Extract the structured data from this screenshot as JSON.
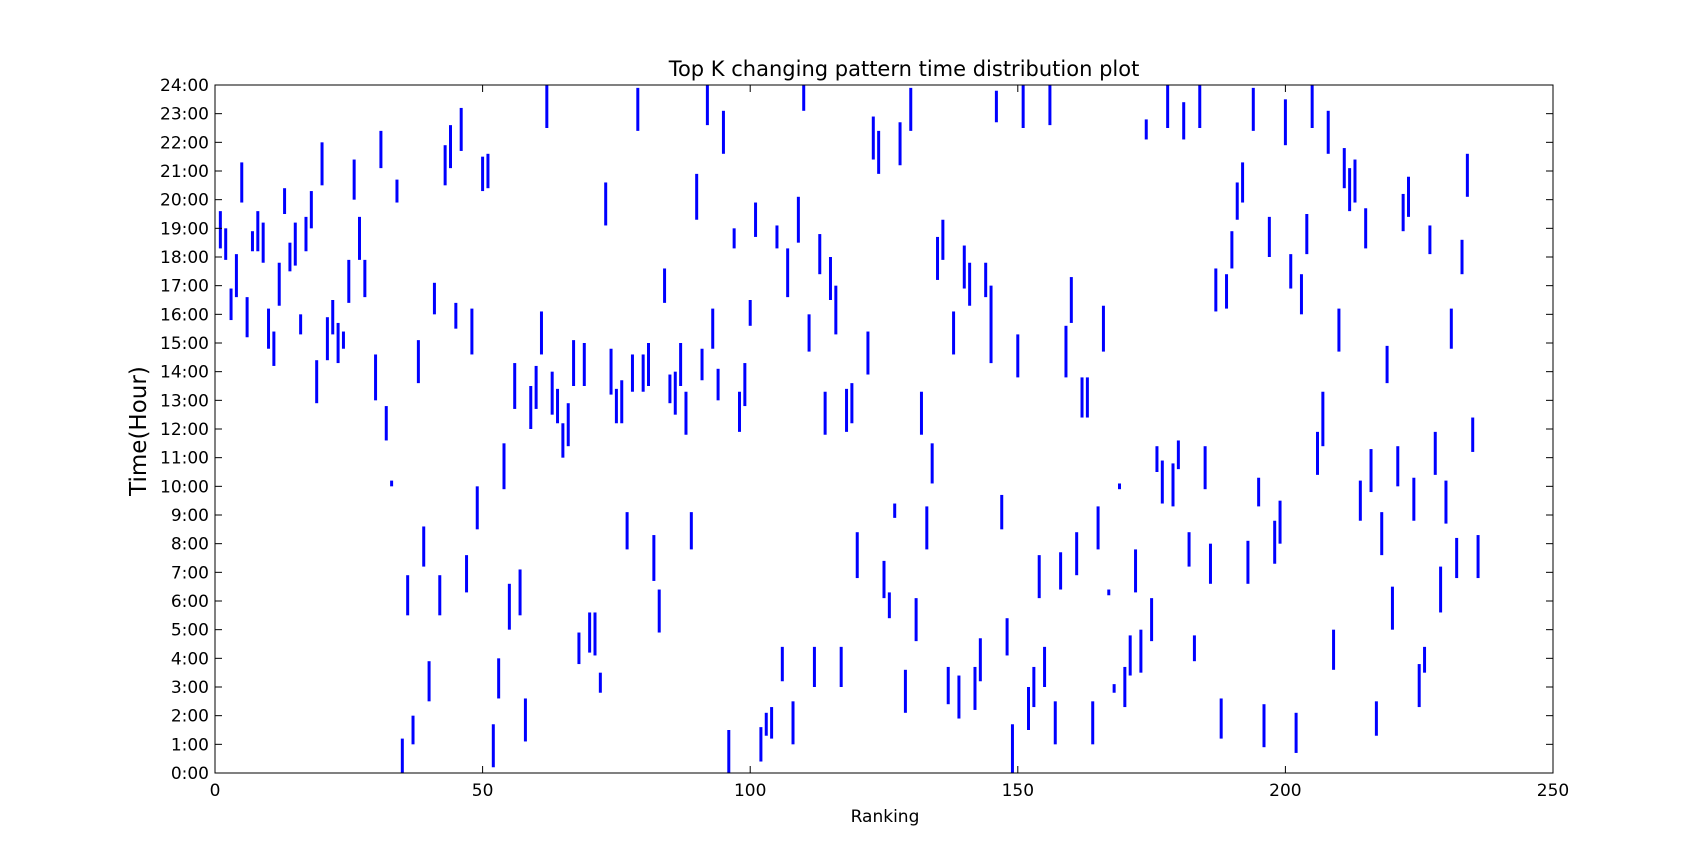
{
  "chart_data": {
    "type": "segment",
    "title": "Top K changing pattern time distribution plot",
    "xlabel": "Ranking",
    "ylabel": "Time(Hour)",
    "xlim": [
      0,
      250
    ],
    "ylim": [
      0,
      24
    ],
    "x_ticks": [
      0,
      50,
      100,
      150,
      200,
      250
    ],
    "y_ticks": [
      "0:00",
      "1:00",
      "2:00",
      "3:00",
      "4:00",
      "5:00",
      "6:00",
      "7:00",
      "8:00",
      "9:00",
      "10:00",
      "11:00",
      "12:00",
      "13:00",
      "14:00",
      "15:00",
      "16:00",
      "17:00",
      "18:00",
      "19:00",
      "20:00",
      "21:00",
      "22:00",
      "23:00",
      "24:00"
    ],
    "grid": false,
    "series_color": "#0000ff",
    "segments": [
      [
        1,
        18.3,
        19.6
      ],
      [
        2,
        17.9,
        19
      ],
      [
        3,
        15.8,
        16.9
      ],
      [
        4,
        16.6,
        18.1
      ],
      [
        5,
        19.9,
        21.3
      ],
      [
        6,
        15.2,
        16.6
      ],
      [
        7,
        18.2,
        18.9
      ],
      [
        8,
        18.2,
        19.6
      ],
      [
        9,
        17.8,
        19.2
      ],
      [
        10,
        14.8,
        16.2
      ],
      [
        11,
        14.2,
        15.4
      ],
      [
        12,
        16.3,
        17.8
      ],
      [
        13,
        19.5,
        20.4
      ],
      [
        14,
        17.5,
        18.5
      ],
      [
        15,
        17.7,
        19.2
      ],
      [
        16,
        15.3,
        16
      ],
      [
        17,
        18.2,
        19.4
      ],
      [
        18,
        19,
        20.3
      ],
      [
        19,
        12.9,
        14.4
      ],
      [
        20,
        20.5,
        22
      ],
      [
        21,
        14.4,
        15.9
      ],
      [
        22,
        15.3,
        16.5
      ],
      [
        23,
        14.3,
        15.7
      ],
      [
        24,
        14.8,
        15.4
      ],
      [
        25,
        16.4,
        17.9
      ],
      [
        26,
        20,
        21.4
      ],
      [
        27,
        17.9,
        19.4
      ],
      [
        28,
        16.6,
        17.9
      ],
      [
        30,
        13,
        14.6
      ],
      [
        31,
        21.1,
        22.4
      ],
      [
        32,
        11.6,
        12.8
      ],
      [
        33,
        10,
        10.2
      ],
      [
        34,
        19.9,
        20.7
      ],
      [
        35,
        0,
        1.2
      ],
      [
        36,
        5.5,
        6.9
      ],
      [
        37,
        1,
        2
      ],
      [
        38,
        13.6,
        15.1
      ],
      [
        39,
        7.2,
        8.6
      ],
      [
        40,
        2.5,
        3.9
      ],
      [
        41,
        16,
        17.1
      ],
      [
        42,
        5.5,
        6.9
      ],
      [
        43,
        20.5,
        21.9
      ],
      [
        44,
        21.1,
        22.6
      ],
      [
        45,
        15.5,
        16.4
      ],
      [
        46,
        21.7,
        23.2
      ],
      [
        47,
        6.3,
        7.6
      ],
      [
        48,
        14.6,
        16.2
      ],
      [
        49,
        8.5,
        10
      ],
      [
        50,
        20.3,
        21.5
      ],
      [
        51,
        20.4,
        21.6
      ],
      [
        52,
        0.2,
        1.7
      ],
      [
        53,
        2.6,
        4
      ],
      [
        54,
        9.9,
        11.5
      ],
      [
        55,
        5,
        6.6
      ],
      [
        56,
        12.7,
        14.3
      ],
      [
        57,
        5.5,
        7.1
      ],
      [
        58,
        1.1,
        2.6
      ],
      [
        59,
        12,
        13.5
      ],
      [
        60,
        12.7,
        14.2
      ],
      [
        61,
        14.6,
        16.1
      ],
      [
        62,
        22.5,
        24
      ],
      [
        63,
        12.5,
        14
      ],
      [
        64,
        12.2,
        13.4
      ],
      [
        65,
        11,
        12.2
      ],
      [
        66,
        11.4,
        12.9
      ],
      [
        67,
        13.5,
        15.1
      ],
      [
        68,
        3.8,
        4.9
      ],
      [
        69,
        13.5,
        15
      ],
      [
        70,
        4.2,
        5.6
      ],
      [
        71,
        4.1,
        5.6
      ],
      [
        72,
        2.8,
        3.5
      ],
      [
        73,
        19.1,
        20.6
      ],
      [
        74,
        13.2,
        14.8
      ],
      [
        75,
        12.2,
        13.4
      ],
      [
        76,
        12.2,
        13.7
      ],
      [
        77,
        7.8,
        9.1
      ],
      [
        78,
        13.3,
        14.6
      ],
      [
        79,
        22.4,
        23.9
      ],
      [
        80,
        13.3,
        14.6
      ],
      [
        81,
        13.5,
        15
      ],
      [
        82,
        6.7,
        8.3
      ],
      [
        83,
        4.9,
        6.4
      ],
      [
        84,
        16.4,
        17.6
      ],
      [
        85,
        12.9,
        13.9
      ],
      [
        86,
        12.5,
        14
      ],
      [
        87,
        13.5,
        15
      ],
      [
        88,
        11.8,
        13.3
      ],
      [
        89,
        7.8,
        9.1
      ],
      [
        90,
        19.3,
        20.9
      ],
      [
        91,
        13.7,
        14.8
      ],
      [
        92,
        22.6,
        24
      ],
      [
        93,
        14.8,
        16.2
      ],
      [
        94,
        13,
        14.1
      ],
      [
        95,
        21.6,
        23.1
      ],
      [
        96,
        0,
        1.5
      ],
      [
        97,
        18.3,
        19
      ],
      [
        98,
        11.9,
        13.3
      ],
      [
        99,
        12.8,
        14.3
      ],
      [
        100,
        15.6,
        16.5
      ],
      [
        101,
        18.7,
        19.9
      ],
      [
        102,
        0.4,
        1.6
      ],
      [
        103,
        1.3,
        2.1
      ],
      [
        104,
        1.2,
        2.3
      ],
      [
        105,
        18.3,
        19.1
      ],
      [
        106,
        3.2,
        4.4
      ],
      [
        107,
        16.6,
        18.3
      ],
      [
        108,
        1,
        2.5
      ],
      [
        109,
        18.5,
        20.1
      ],
      [
        110,
        23.1,
        24
      ],
      [
        111,
        14.7,
        16
      ],
      [
        112,
        3,
        4.4
      ],
      [
        113,
        17.4,
        18.8
      ],
      [
        114,
        11.8,
        13.3
      ],
      [
        115,
        16.5,
        18
      ],
      [
        116,
        15.3,
        17
      ],
      [
        117,
        3,
        4.4
      ],
      [
        118,
        11.9,
        13.4
      ],
      [
        119,
        12.2,
        13.6
      ],
      [
        120,
        6.8,
        8.4
      ],
      [
        122,
        13.9,
        15.4
      ],
      [
        123,
        21.4,
        22.9
      ],
      [
        124,
        20.9,
        22.4
      ],
      [
        125,
        6.1,
        7.4
      ],
      [
        126,
        5.4,
        6.3
      ],
      [
        127,
        8.9,
        9.4
      ],
      [
        128,
        21.2,
        22.7
      ],
      [
        129,
        2.1,
        3.6
      ],
      [
        130,
        22.4,
        23.9
      ],
      [
        131,
        4.6,
        6.1
      ],
      [
        132,
        11.8,
        13.3
      ],
      [
        133,
        7.8,
        9.3
      ],
      [
        134,
        10.1,
        11.5
      ],
      [
        135,
        17.2,
        18.7
      ],
      [
        136,
        17.9,
        19.3
      ],
      [
        137,
        2.4,
        3.7
      ],
      [
        138,
        14.6,
        16.1
      ],
      [
        139,
        1.9,
        3.4
      ],
      [
        140,
        16.9,
        18.4
      ],
      [
        141,
        16.3,
        17.8
      ],
      [
        142,
        2.2,
        3.7
      ],
      [
        143,
        3.2,
        4.7
      ],
      [
        144,
        16.6,
        17.8
      ],
      [
        145,
        14.3,
        17
      ],
      [
        146,
        22.7,
        23.8
      ],
      [
        147,
        8.5,
        9.7
      ],
      [
        148,
        4.1,
        5.4
      ],
      [
        149,
        0,
        1.7
      ],
      [
        150,
        13.8,
        15.3
      ],
      [
        151,
        22.5,
        24
      ],
      [
        152,
        1.5,
        3
      ],
      [
        153,
        2.3,
        3.7
      ],
      [
        154,
        6.1,
        7.6
      ],
      [
        155,
        3,
        4.4
      ],
      [
        156,
        22.6,
        24
      ],
      [
        157,
        1,
        2.5
      ],
      [
        158,
        6.4,
        7.7
      ],
      [
        159,
        13.8,
        15.6
      ],
      [
        160,
        15.7,
        17.3
      ],
      [
        161,
        6.9,
        8.4
      ],
      [
        162,
        12.4,
        13.8
      ],
      [
        163,
        12.4,
        13.8
      ],
      [
        164,
        1,
        2.5
      ],
      [
        165,
        7.8,
        9.3
      ],
      [
        166,
        14.7,
        16.3
      ],
      [
        167,
        6.2,
        6.4
      ],
      [
        168,
        2.8,
        3.1
      ],
      [
        169,
        9.9,
        10.1
      ],
      [
        170,
        2.3,
        3.7
      ],
      [
        171,
        3.4,
        4.8
      ],
      [
        172,
        6.3,
        7.8
      ],
      [
        173,
        3.5,
        5
      ],
      [
        174,
        22.1,
        22.8
      ],
      [
        175,
        4.6,
        6.1
      ],
      [
        176,
        10.5,
        11.4
      ],
      [
        177,
        9.4,
        10.9
      ],
      [
        178,
        22.5,
        24
      ],
      [
        179,
        9.3,
        10.8
      ],
      [
        180,
        10.6,
        11.6
      ],
      [
        181,
        22.1,
        23.4
      ],
      [
        182,
        7.2,
        8.4
      ],
      [
        183,
        3.9,
        4.8
      ],
      [
        184,
        22.5,
        24
      ],
      [
        185,
        9.9,
        11.4
      ],
      [
        186,
        6.6,
        8
      ],
      [
        187,
        16.1,
        17.6
      ],
      [
        188,
        1.2,
        2.6
      ],
      [
        189,
        16.2,
        17.4
      ],
      [
        190,
        17.6,
        18.9
      ],
      [
        191,
        19.3,
        20.6
      ],
      [
        192,
        19.9,
        21.3
      ],
      [
        193,
        6.6,
        8.1
      ],
      [
        194,
        22.4,
        23.9
      ],
      [
        195,
        9.3,
        10.3
      ],
      [
        196,
        0.9,
        2.4
      ],
      [
        197,
        18,
        19.4
      ],
      [
        198,
        7.3,
        8.8
      ],
      [
        199,
        8,
        9.5
      ],
      [
        200,
        21.9,
        23.5
      ],
      [
        201,
        16.9,
        18.1
      ],
      [
        202,
        0.7,
        2.1
      ],
      [
        203,
        16,
        17.4
      ],
      [
        204,
        18.1,
        19.5
      ],
      [
        205,
        22.5,
        24
      ],
      [
        206,
        10.4,
        11.9
      ],
      [
        207,
        11.4,
        13.3
      ],
      [
        208,
        21.6,
        23.1
      ],
      [
        209,
        3.6,
        5
      ],
      [
        210,
        14.7,
        16.2
      ],
      [
        211,
        20.4,
        21.8
      ],
      [
        212,
        19.6,
        21.1
      ],
      [
        213,
        19.9,
        21.4
      ],
      [
        214,
        8.8,
        10.2
      ],
      [
        215,
        18.3,
        19.7
      ],
      [
        216,
        9.8,
        11.3
      ],
      [
        217,
        1.3,
        2.5
      ],
      [
        218,
        7.6,
        9.1
      ],
      [
        219,
        13.6,
        14.9
      ],
      [
        220,
        5,
        6.5
      ],
      [
        221,
        10,
        11.4
      ],
      [
        222,
        18.9,
        20.2
      ],
      [
        223,
        19.4,
        20.8
      ],
      [
        224,
        8.8,
        10.3
      ],
      [
        225,
        2.3,
        3.8
      ],
      [
        226,
        3.5,
        4.4
      ],
      [
        227,
        18.1,
        19.1
      ],
      [
        228,
        10.4,
        11.9
      ],
      [
        229,
        5.6,
        7.2
      ],
      [
        230,
        8.7,
        10.2
      ],
      [
        231,
        14.8,
        16.2
      ],
      [
        232,
        6.8,
        8.2
      ],
      [
        233,
        17.4,
        18.6
      ],
      [
        234,
        20.1,
        21.6
      ],
      [
        235,
        11.2,
        12.4
      ],
      [
        236,
        6.8,
        8.3
      ]
    ]
  }
}
